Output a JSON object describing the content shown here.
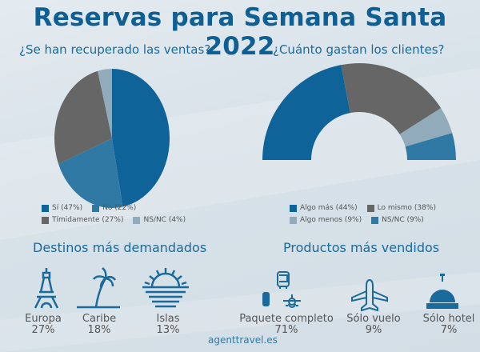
{
  "title": "Reservas para Semana Santa 2022",
  "chart_data": [
    {
      "type": "pie",
      "title": "¿Se han recuperado las ventas?",
      "slices": [
        {
          "label": "Sí",
          "value": 47,
          "color": "#0e6399",
          "legend": "Sí (47%)"
        },
        {
          "label": "No",
          "value": 22,
          "color": "#3079a4",
          "legend": "No (22%)"
        },
        {
          "label": "Tímidamente",
          "value": 27,
          "color": "#666666",
          "legend": "Tímidamente (27%)"
        },
        {
          "label": "NS/NC",
          "value": 4,
          "color": "#91abba",
          "legend": "NS/NC (4%)"
        }
      ]
    },
    {
      "type": "pie",
      "subtype": "half-donut",
      "title": "¿Cuánto gastan los clientes?",
      "slices": [
        {
          "label": "Algo más",
          "value": 44,
          "color": "#0e6399",
          "legend": "Algo más (44%)"
        },
        {
          "label": "Lo mismo",
          "value": 38,
          "color": "#666666",
          "legend": "Lo mismo (38%)"
        },
        {
          "label": "Algo menos",
          "value": 9,
          "color": "#91abba",
          "legend": "Algo menos (9%)"
        },
        {
          "label": "NS/NC",
          "value": 9,
          "color": "#3079a4",
          "legend": "NS/NC (9%)"
        }
      ]
    }
  ],
  "destinos": {
    "title": "Destinos más demandados",
    "items": [
      {
        "name": "Europa",
        "pct": "27%",
        "icon": "eiffel-tower-icon"
      },
      {
        "name": "Caribe",
        "pct": "18%",
        "icon": "palm-tree-icon"
      },
      {
        "name": "Islas",
        "pct": "13%",
        "icon": "sunset-sea-icon"
      }
    ]
  },
  "productos": {
    "title": "Productos más vendidos",
    "items": [
      {
        "name": "Paquete completo",
        "pct": "71%",
        "icon": "package-icon"
      },
      {
        "name": "Sólo vuelo",
        "pct": "9%",
        "icon": "airplane-icon"
      },
      {
        "name": "Sólo hotel",
        "pct": "7%",
        "icon": "hotel-bell-icon"
      }
    ]
  },
  "brand": "agenttravel.es",
  "colors": {
    "accent": "#0e5f94"
  }
}
